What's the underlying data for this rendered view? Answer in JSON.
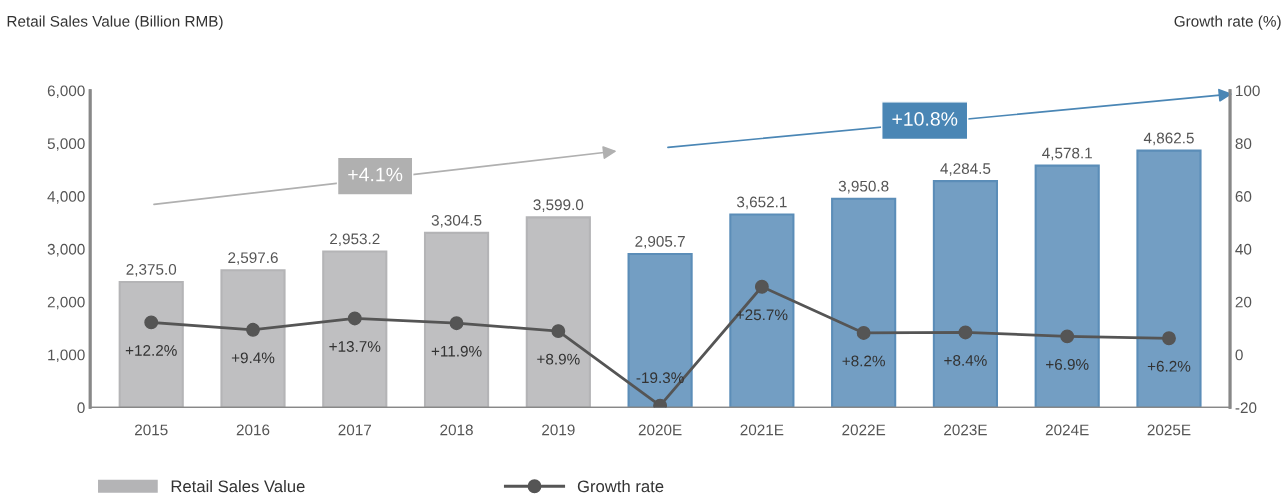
{
  "chart_data": {
    "type": "bar",
    "ylabel": "Retail Sales Value (Billion RMB)",
    "y2label": "Growth rate (%)",
    "categories": [
      "2015",
      "2016",
      "2017",
      "2018",
      "2019",
      "2020E",
      "2021E",
      "2022E",
      "2023E",
      "2024E",
      "2025E"
    ],
    "series": [
      {
        "name": "Retail Sales Value",
        "color": "#b4b4b6",
        "colors": [
          "#b4b4b6",
          "#b4b4b6",
          "#b4b4b6",
          "#b4b4b6",
          "#b4b4b6",
          "#5b8db8",
          "#5b8db8",
          "#5b8db8",
          "#5b8db8",
          "#5b8db8",
          "#5b8db8"
        ],
        "values": [
          2375.0,
          2597.6,
          2953.2,
          3304.5,
          3599.0,
          2905.7,
          3652.1,
          3950.8,
          4284.5,
          4578.1,
          4862.5
        ],
        "value_labels": [
          "2,375.0",
          "2,597.6",
          "2,953.2",
          "3,304.5",
          "3,599.0",
          "2,905.7",
          "3,652.1",
          "3,950.8",
          "4,284.5",
          "4,578.1",
          "4,862.5"
        ]
      },
      {
        "name": "Growth rate",
        "type": "line",
        "axis": "y2",
        "color": "#555555",
        "marker": "circle",
        "values": [
          12.2,
          9.4,
          13.7,
          11.9,
          8.9,
          -19.3,
          25.7,
          8.2,
          8.4,
          6.9,
          6.2
        ],
        "value_labels": [
          "+12.2%",
          "+9.4%",
          "+13.7%",
          "+11.9%",
          "+8.9%",
          "-19.3%",
          "+25.7%",
          "+8.2%",
          "+8.4%",
          "+6.9%",
          "+6.2%"
        ]
      }
    ],
    "ylim": [
      0,
      6000
    ],
    "yticks": [
      {
        "value": 0,
        "label": "0"
      },
      {
        "value": 1000,
        "label": "1,000"
      },
      {
        "value": 2000,
        "label": "2,000"
      },
      {
        "value": 3000,
        "label": "3,000"
      },
      {
        "value": 4000,
        "label": "4,000"
      },
      {
        "value": 5000,
        "label": "5,000"
      },
      {
        "value": 6000,
        "label": "6,000"
      }
    ],
    "y2lim": [
      -20,
      100
    ],
    "y2ticks": [
      -20,
      0,
      20,
      40,
      60,
      80,
      100
    ],
    "annotations": [
      "+4.1%",
      "+10.8%"
    ],
    "grid": false,
    "legend": "bottom left"
  }
}
